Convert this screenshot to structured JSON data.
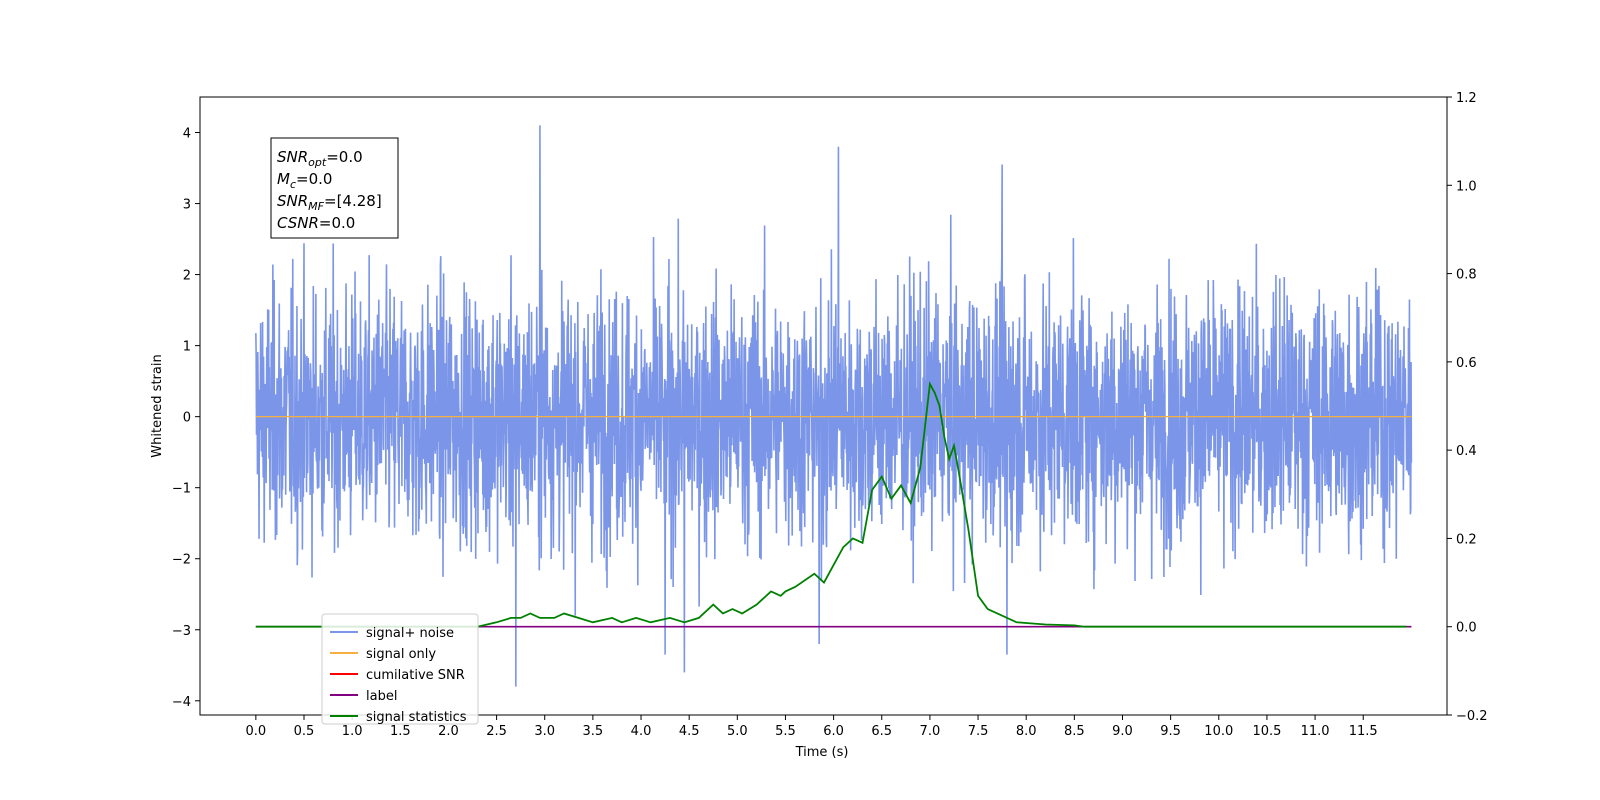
{
  "chart_data": {
    "type": "line",
    "xlabel": "Time (s)",
    "ylabel": "Whitened strain",
    "xlim": [
      -0.58,
      12.37
    ],
    "ylim_left": [
      -4.2,
      4.5
    ],
    "ylim_right": [
      -0.2,
      1.2
    ],
    "x_ticks": [
      "0.0",
      "0.5",
      "1.0",
      "1.5",
      "2.0",
      "2.5",
      "3.0",
      "3.5",
      "4.0",
      "4.5",
      "5.0",
      "5.5",
      "6.0",
      "6.5",
      "7.0",
      "7.5",
      "8.0",
      "8.5",
      "9.0",
      "9.5",
      "10.0",
      "10.5",
      "11.0",
      "11.5"
    ],
    "y_ticks_left": [
      "4",
      "3",
      "2",
      "1",
      "0",
      "−1",
      "−2",
      "−3",
      "−4"
    ],
    "y_ticks_right": [
      "1.2",
      "1.0",
      "0.8",
      "0.6",
      "0.4",
      "0.2",
      "0.0",
      "−0.2"
    ],
    "grid": false,
    "legend_placement": "lower-left",
    "annotation": {
      "lines": [
        {
          "base": "SNR",
          "sub": "opt",
          "rest": "=0.0"
        },
        {
          "base": "M",
          "sub": "c",
          "rest": "=0.0"
        },
        {
          "base": "SNR",
          "sub": "MF",
          "rest": "=[4.28]"
        },
        {
          "base": "CSNR",
          "sub": "",
          "rest": "=0.0"
        }
      ]
    },
    "series": [
      {
        "name": "signal+ noise",
        "color": "#7b96e8",
        "axis": "left",
        "kind": "noise",
        "x_range": [
          0,
          12.0
        ],
        "typical_range": [
          -1.8,
          1.8
        ],
        "peaks": [
          [
            2.95,
            4.1
          ],
          [
            6.05,
            3.8
          ],
          [
            7.75,
            3.55
          ],
          [
            2.7,
            -3.8
          ],
          [
            4.45,
            -3.6
          ],
          [
            4.25,
            -3.35
          ],
          [
            7.8,
            -3.35
          ],
          [
            5.85,
            -3.2
          ]
        ]
      },
      {
        "name": "signal only",
        "color": "#f5b041",
        "axis": "left",
        "x": [
          0,
          12.0
        ],
        "values": [
          0,
          0
        ]
      },
      {
        "name": "cumilative SNR",
        "color": "#ff0000",
        "axis": "right",
        "x": [
          0,
          12.0
        ],
        "values": [
          0,
          0
        ]
      },
      {
        "name": "label",
        "color": "#800080",
        "axis": "right",
        "x": [
          0,
          12.0
        ],
        "values": [
          0,
          0
        ]
      },
      {
        "name": "signal statistics",
        "color": "#008000",
        "axis": "right",
        "x": [
          0.0,
          2.3,
          2.5,
          2.65,
          2.75,
          2.85,
          2.95,
          3.1,
          3.2,
          3.35,
          3.5,
          3.7,
          3.8,
          3.95,
          4.1,
          4.3,
          4.45,
          4.6,
          4.75,
          4.85,
          4.95,
          5.05,
          5.2,
          5.35,
          5.45,
          5.5,
          5.6,
          5.8,
          5.9,
          6.0,
          6.1,
          6.2,
          6.3,
          6.4,
          6.5,
          6.6,
          6.7,
          6.8,
          6.9,
          7.0,
          7.05,
          7.1,
          7.15,
          7.2,
          7.25,
          7.3,
          7.4,
          7.5,
          7.6,
          7.7,
          7.9,
          8.2,
          8.5,
          8.6,
          9.0,
          11.0,
          11.95
        ],
        "values": [
          0.0,
          0.0,
          0.01,
          0.02,
          0.02,
          0.03,
          0.02,
          0.02,
          0.03,
          0.02,
          0.01,
          0.02,
          0.01,
          0.02,
          0.01,
          0.02,
          0.01,
          0.02,
          0.05,
          0.03,
          0.04,
          0.03,
          0.05,
          0.08,
          0.07,
          0.08,
          0.09,
          0.12,
          0.1,
          0.14,
          0.18,
          0.2,
          0.19,
          0.31,
          0.34,
          0.29,
          0.32,
          0.28,
          0.36,
          0.55,
          0.53,
          0.5,
          0.43,
          0.38,
          0.41,
          0.35,
          0.22,
          0.07,
          0.04,
          0.03,
          0.01,
          0.005,
          0.003,
          0.0,
          0.0,
          0.0,
          0.0
        ]
      }
    ]
  }
}
